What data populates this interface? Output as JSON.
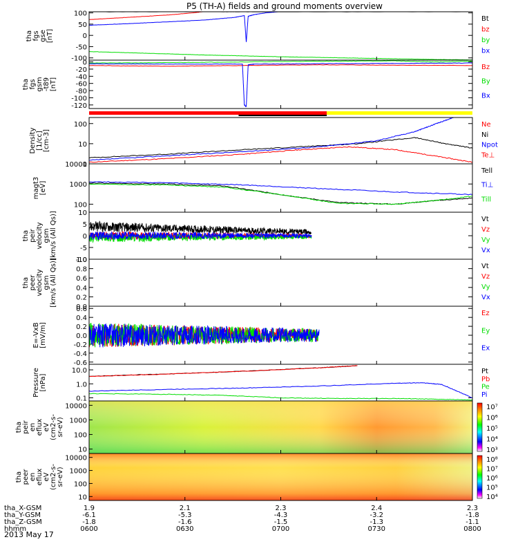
{
  "title": "P5 (TH-A) fields and ground moments overview",
  "date": "2013 May 17",
  "colors": {
    "black": "#000000",
    "red": "#ff0000",
    "green": "#00dd00",
    "blue": "#0000ff",
    "yellow": "#ffff00"
  },
  "chart_data": [
    {
      "type": "line",
      "id": "fgs_gse",
      "ylabel": [
        "tha",
        "fgs",
        "gse",
        "[nT]"
      ],
      "yticks": [
        100,
        50,
        0,
        -50,
        -100
      ],
      "ytick_labels": [
        "100",
        "50",
        "0",
        "-50",
        "-100"
      ],
      "ylim": [
        -110,
        105
      ],
      "series": [
        {
          "name": "Bt",
          "color": "black",
          "x": [
            0,
            0.35,
            0.43,
            1.0
          ],
          "y": [
            105,
            105,
            105,
            105
          ]
        },
        {
          "name": "bz",
          "color": "red",
          "x": [
            0,
            0.1,
            0.2,
            0.27,
            0.3
          ],
          "y": [
            70,
            80,
            90,
            100,
            106
          ]
        },
        {
          "name": "by",
          "color": "green",
          "x": [
            0,
            0.1,
            0.2,
            0.3,
            0.4,
            0.5,
            0.6,
            0.7,
            0.8,
            0.9,
            1.0
          ],
          "y": [
            -72,
            -77,
            -82,
            -87,
            -91,
            -95,
            -98,
            -101,
            -104,
            -107,
            -109
          ]
        },
        {
          "name": "bx",
          "color": "blue",
          "x": [
            0,
            0.1,
            0.2,
            0.3,
            0.38,
            0.405,
            0.41,
            0.415,
            0.43,
            0.46,
            0.5
          ],
          "y": [
            45,
            52,
            60,
            68,
            80,
            88,
            -30,
            85,
            92,
            100,
            106
          ]
        }
      ]
    },
    {
      "type": "line",
      "id": "fgs_gsm",
      "ylabel": [
        "tha",
        "fgs",
        "gsm",
        "-t89",
        "[nT]"
      ],
      "yticks": [
        0,
        -20,
        -40,
        -60,
        -80,
        -100,
        -120
      ],
      "ytick_labels": [
        "0",
        "-20",
        "-40",
        "-60",
        "-80",
        "-100",
        "-120"
      ],
      "ylim": [
        -130,
        5
      ],
      "series": [
        {
          "name": "Bz",
          "color": "red",
          "x": [
            0,
            0.2,
            0.4,
            0.6,
            0.8,
            1.0
          ],
          "y": [
            -10,
            -12,
            -10,
            -8,
            -9,
            -10
          ]
        },
        {
          "name": "By",
          "color": "green",
          "x": [
            0,
            0.2,
            0.4,
            0.6,
            0.8,
            0.9,
            1.0
          ],
          "y": [
            -3,
            -2,
            0,
            2,
            3,
            0,
            2
          ]
        },
        {
          "name": "Bx",
          "color": "blue",
          "x": [
            0,
            0.2,
            0.4,
            0.405,
            0.41,
            0.415,
            0.43,
            0.6,
            0.8,
            1.0
          ],
          "y": [
            -5,
            -6,
            -6,
            -120,
            -125,
            -8,
            -6,
            -5,
            -4,
            -3
          ]
        }
      ]
    },
    {
      "type": "line",
      "id": "density",
      "log": true,
      "ylabel": [
        "Density",
        "[1/cc]",
        "[cm-3]"
      ],
      "yticks": [
        100,
        10,
        1
      ],
      "ytick_labels": [
        "100",
        "10",
        "1"
      ],
      "ylim": [
        1,
        200
      ],
      "series": [
        {
          "name": "Ne",
          "color": "red",
          "x": [
            0,
            0.2,
            0.4,
            0.55,
            0.68,
            0.8,
            0.9,
            1.0
          ],
          "y": [
            1.2,
            1.8,
            3.0,
            5.0,
            7.0,
            5.0,
            2.5,
            1.2
          ]
        },
        {
          "name": "Ni",
          "color": "black",
          "x": [
            0,
            0.2,
            0.4,
            0.55,
            0.7,
            0.85,
            0.93,
            1.0
          ],
          "y": [
            2.0,
            3.0,
            5.0,
            7.0,
            10.0,
            20.0,
            10.0,
            6.0
          ]
        },
        {
          "name": "Npot",
          "color": "blue",
          "x": [
            0,
            0.2,
            0.4,
            0.6,
            0.75,
            0.85,
            0.9,
            0.95
          ],
          "y": [
            1.5,
            2.5,
            4.0,
            7.0,
            14.0,
            40.0,
            90.0,
            200.0
          ]
        },
        {
          "name": "Te⊥",
          "color": "red",
          "x": [],
          "y": []
        }
      ]
    },
    {
      "type": "line",
      "id": "temperature",
      "log": true,
      "ylabel": [
        "magt3",
        "[eV]"
      ],
      "yticks": [
        10000,
        1000,
        100
      ],
      "ytick_labels": [
        "10000",
        "1000",
        "100"
      ],
      "ylim": [
        40,
        10000
      ],
      "series": [
        {
          "name": "Tell",
          "color": "black",
          "x": [
            0,
            0.2,
            0.35,
            0.5,
            0.65,
            0.8,
            0.9,
            1.0
          ],
          "y": [
            1100,
            1000,
            800,
            300,
            120,
            100,
            150,
            200
          ]
        },
        {
          "name": "Ti⊥",
          "color": "blue",
          "x": [
            0,
            0.2,
            0.4,
            0.6,
            0.8,
            1.0
          ],
          "y": [
            1300,
            1150,
            900,
            600,
            400,
            300
          ]
        },
        {
          "name": "Till",
          "color": "green",
          "x": [
            0,
            0.2,
            0.35,
            0.5,
            0.65,
            0.8,
            0.9,
            1.0
          ],
          "y": [
            1000,
            900,
            700,
            300,
            110,
            100,
            150,
            250
          ]
        }
      ]
    },
    {
      "type": "line",
      "id": "peir_velocity",
      "ylabel": [
        "tha",
        "peir",
        "velocity",
        "gsm",
        "[km/s (All Qs)]"
      ],
      "yticks": [
        10,
        5,
        0,
        -5,
        -10
      ],
      "ytick_labels": [
        "10",
        "5",
        "0",
        "-5",
        "-10"
      ],
      "ylim": [
        -10,
        10
      ],
      "series": [
        {
          "name": "Vt",
          "color": "black",
          "x": [
            0,
            0.58
          ],
          "y": [
            4,
            1.5
          ]
        },
        {
          "name": "Vz",
          "color": "red",
          "x": [
            0,
            0.58
          ],
          "y": [
            0,
            0
          ]
        },
        {
          "name": "Vy",
          "color": "green",
          "x": [
            0,
            0.58
          ],
          "y": [
            -1,
            -0.5
          ]
        },
        {
          "name": "Vx",
          "color": "blue",
          "x": [
            0,
            0.58
          ],
          "y": [
            0,
            0
          ]
        }
      ]
    },
    {
      "type": "line",
      "id": "peer_velocity",
      "ylabel": [
        "tha",
        "peer",
        "velocity",
        "gsm",
        "[km/s (All Qs)]"
      ],
      "yticks": [
        1.0,
        0.8,
        0.6,
        0.4,
        0.2,
        0.0
      ],
      "ytick_labels": [
        "1.0",
        "0.8",
        "0.6",
        "0.4",
        "0.2",
        "0.0"
      ],
      "ylim": [
        0,
        1
      ],
      "series": [
        {
          "name": "Vt",
          "color": "black",
          "x": [],
          "y": []
        },
        {
          "name": "Vz",
          "color": "red",
          "x": [],
          "y": []
        },
        {
          "name": "Vy",
          "color": "green",
          "x": [],
          "y": []
        },
        {
          "name": "Vx",
          "color": "blue",
          "x": [],
          "y": []
        }
      ]
    },
    {
      "type": "line",
      "id": "efield",
      "ylabel": [
        "E=-VxB",
        "[mV/m]"
      ],
      "yticks": [
        0.6,
        0.4,
        0.2,
        0.0,
        -0.2,
        -0.4,
        -0.6
      ],
      "ytick_labels": [
        "0.6",
        "0.4",
        "0.2",
        "0.0",
        "-0.2",
        "-0.4",
        "-0.6"
      ],
      "ylim": [
        -0.65,
        0.65
      ],
      "series": [
        {
          "name": "Ez",
          "color": "red",
          "x": [
            0,
            0.6
          ],
          "y": [
            0,
            0
          ]
        },
        {
          "name": "Ey",
          "color": "green",
          "x": [
            0,
            0.6
          ],
          "y": [
            0,
            0
          ]
        },
        {
          "name": "Ex",
          "color": "blue",
          "x": [
            0,
            0.6
          ],
          "y": [
            0,
            0
          ]
        }
      ]
    },
    {
      "type": "line",
      "id": "pressure",
      "log": true,
      "ylabel": [
        "Pressure",
        "[nPa]"
      ],
      "yticks": [
        10.0,
        1.0,
        0.1
      ],
      "ytick_labels": [
        "10.0",
        "1.0",
        "0.1"
      ],
      "ylim": [
        0.06,
        25
      ],
      "series": [
        {
          "name": "Pt",
          "color": "black",
          "x": [
            0,
            0.2,
            0.4,
            0.6,
            0.7
          ],
          "y": [
            3.5,
            5,
            8,
            14,
            20
          ]
        },
        {
          "name": "Pb",
          "color": "red",
          "x": [
            0,
            0.2,
            0.4,
            0.6,
            0.7
          ],
          "y": [
            3.4,
            4.9,
            7.9,
            14,
            20
          ]
        },
        {
          "name": "Pe",
          "color": "green",
          "x": [
            0,
            0.2,
            0.35,
            0.5,
            0.65,
            0.8,
            0.9,
            1.0
          ],
          "y": [
            0.2,
            0.18,
            0.15,
            0.1,
            0.09,
            0.09,
            0.08,
            0.07
          ]
        },
        {
          "name": "Pi",
          "color": "blue",
          "x": [
            0,
            0.2,
            0.4,
            0.6,
            0.8,
            0.87,
            0.92,
            1.0
          ],
          "y": [
            0.3,
            0.4,
            0.5,
            0.7,
            1.1,
            1.2,
            0.9,
            0.1
          ]
        }
      ]
    },
    {
      "type": "heatmap",
      "id": "peir_eflux",
      "ylabel": [
        "tha",
        "peir",
        "en",
        "eflux",
        "eV",
        "(cm2-s-",
        "sr-eV)"
      ],
      "yticks": [
        10000,
        1000,
        100,
        10
      ],
      "ytick_labels": [
        "10000",
        "1000",
        "100",
        "10"
      ],
      "colorbar": {
        "labels": [
          "10⁷",
          "10⁶",
          "10⁵",
          "10⁴",
          "10³"
        ]
      }
    },
    {
      "type": "heatmap",
      "id": "peer_eflux",
      "ylabel": [
        "tha",
        "peer",
        "en",
        "eflux",
        "eV",
        "(cm2-s-",
        "sr-eV)"
      ],
      "yticks": [
        10000,
        1000,
        100,
        10
      ],
      "ytick_labels": [
        "10000",
        "1000",
        "100",
        "10"
      ],
      "colorbar": {
        "labels": [
          "10⁸",
          "10⁷",
          "10⁶",
          "10⁵",
          "10⁴"
        ]
      }
    }
  ],
  "mode_bar": {
    "segments": [
      {
        "color": "red",
        "from": 0,
        "to": 0.62
      },
      {
        "color": "yellow",
        "from": 0.62,
        "to": 1.0
      }
    ]
  },
  "x_axis": {
    "row_labels": [
      "tha_X-GSM",
      "tha_Y-GSM",
      "tha_Z-GSM",
      "hhmm"
    ],
    "columns": [
      [
        "1.9",
        "-6.1",
        "-1.8",
        "0600"
      ],
      [
        "2.1",
        "-5.3",
        "-1.6",
        "0630"
      ],
      [
        "2.3",
        "-4.3",
        "-1.5",
        "0700"
      ],
      [
        "2.4",
        "-3.2",
        "-1.3",
        "0730"
      ],
      [
        "2.3",
        "-1.8",
        "-1.1",
        "0800"
      ]
    ]
  }
}
